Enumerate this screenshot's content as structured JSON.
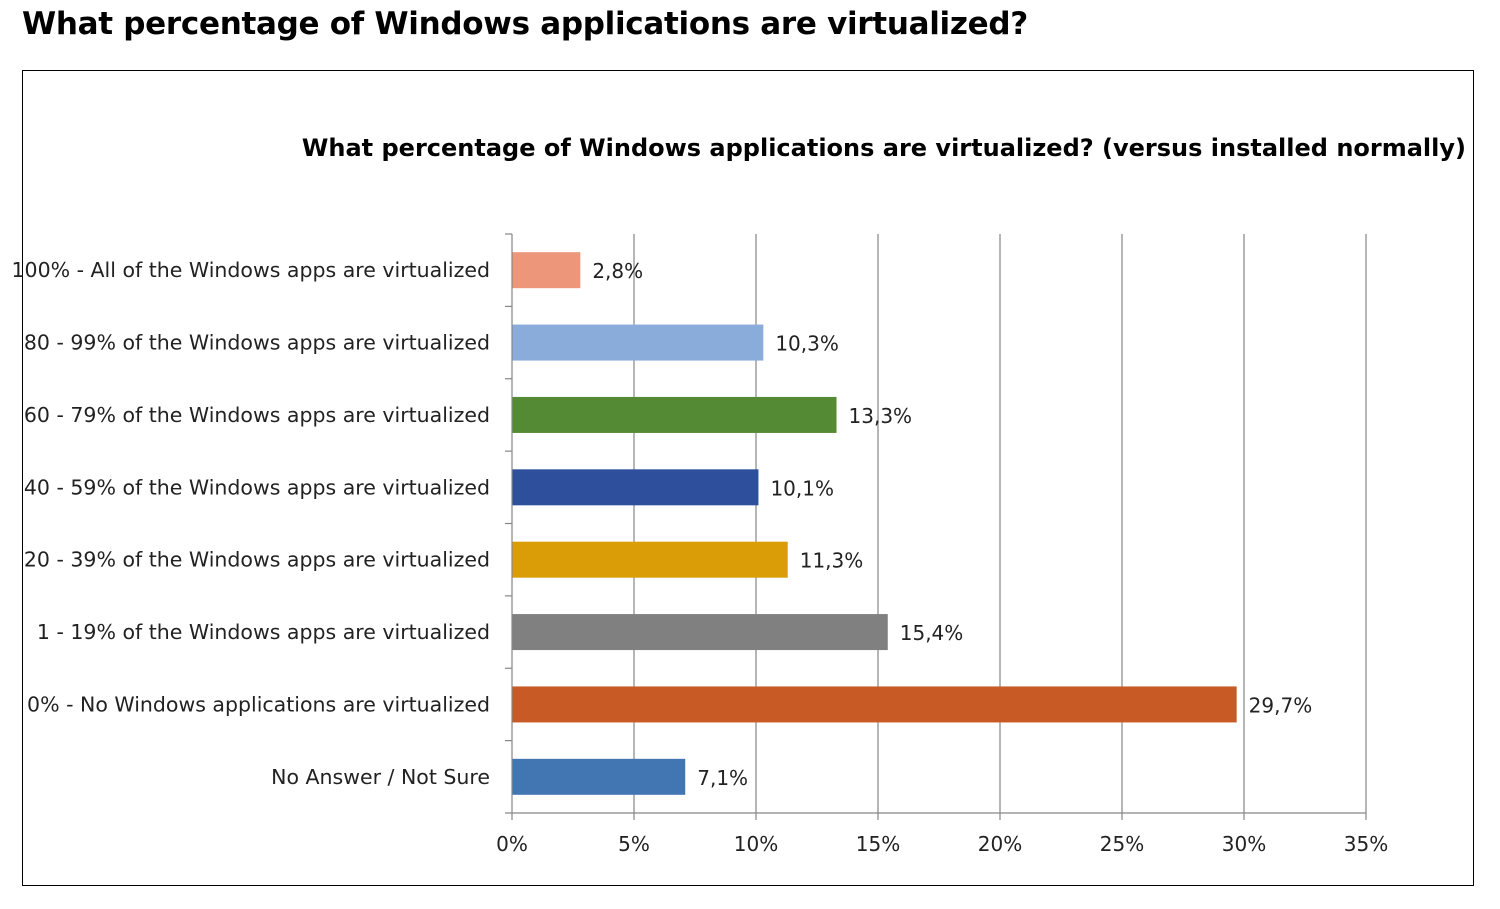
{
  "page": {
    "heading": "What percentage of Windows applications are virtualized?"
  },
  "chart_data": {
    "type": "bar",
    "orientation": "horizontal",
    "title": "What percentage of Windows applications are virtualized? (versus installed normally)",
    "categories": [
      "100% - All of the Windows apps are virtualized",
      "80 - 99% of the Windows apps are virtualized",
      "60 - 79% of the Windows apps are virtualized",
      "40 - 59% of the Windows apps are virtualized",
      "20 - 39% of the Windows apps are virtualized",
      "1 - 19% of the Windows apps are virtualized",
      "0% - No Windows applications are virtualized",
      "No Answer / Not Sure"
    ],
    "values": [
      2.8,
      10.3,
      13.3,
      10.1,
      11.3,
      15.4,
      29.7,
      7.1
    ],
    "data_labels": [
      "2,8%",
      "10,3%",
      "13,3%",
      "10,1%",
      "11,3%",
      "15,4%",
      "29,7%",
      "7,1%"
    ],
    "colors": [
      "#ED967A",
      "#8AACDA",
      "#548A33",
      "#2E4F9B",
      "#DA9D08",
      "#808080",
      "#C85B25",
      "#4276B3"
    ],
    "xlim": [
      0,
      35
    ],
    "x_ticks": [
      0,
      5,
      10,
      15,
      20,
      25,
      30,
      35
    ],
    "x_tick_labels": [
      "0%",
      "5%",
      "10%",
      "15%",
      "20%",
      "25%",
      "30%",
      "35%"
    ],
    "xlabel": "",
    "ylabel": "",
    "grid": "vertical",
    "legend": "none",
    "gridline_color": "#868686"
  }
}
